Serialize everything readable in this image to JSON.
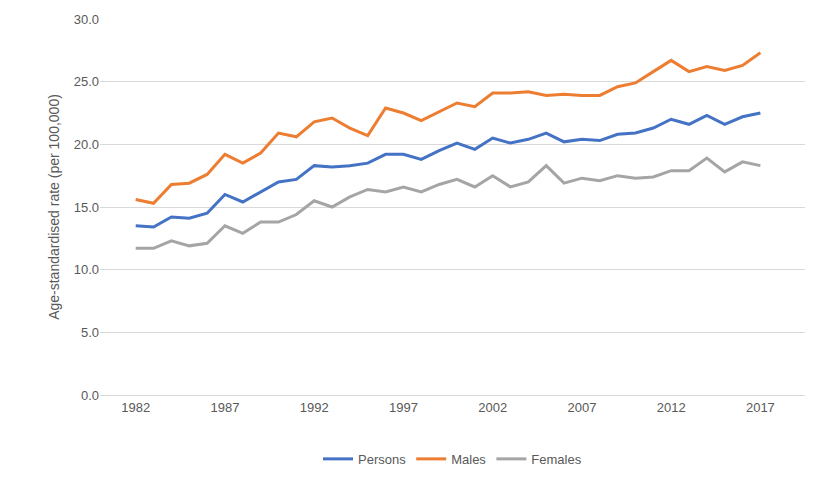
{
  "chart_data": {
    "type": "line",
    "y_label": "Age-standardised rate (per 100,000)",
    "x": [
      1982,
      1983,
      1984,
      1985,
      1986,
      1987,
      1988,
      1989,
      1990,
      1991,
      1992,
      1993,
      1994,
      1995,
      1996,
      1997,
      1998,
      1999,
      2000,
      2001,
      2002,
      2003,
      2004,
      2005,
      2006,
      2007,
      2008,
      2009,
      2010,
      2011,
      2012,
      2013,
      2014,
      2015,
      2016,
      2017
    ],
    "series": [
      {
        "name": "Persons",
        "color": "#4472c4",
        "values": [
          13.5,
          13.4,
          14.2,
          14.1,
          14.5,
          16.0,
          15.4,
          16.2,
          17.0,
          17.2,
          18.3,
          18.2,
          18.3,
          18.5,
          19.2,
          19.2,
          18.8,
          19.5,
          20.1,
          19.6,
          20.5,
          20.1,
          20.4,
          20.9,
          20.2,
          20.4,
          20.3,
          20.8,
          20.9,
          21.3,
          22.0,
          21.6,
          22.3,
          21.6,
          22.2,
          22.5
        ]
      },
      {
        "name": "Males",
        "color": "#ed7d31",
        "values": [
          15.6,
          15.3,
          16.8,
          16.9,
          17.6,
          19.2,
          18.5,
          19.3,
          20.9,
          20.6,
          21.8,
          22.1,
          21.3,
          20.7,
          22.9,
          22.5,
          21.9,
          22.6,
          23.3,
          23.0,
          24.1,
          24.1,
          24.2,
          23.9,
          24.0,
          23.9,
          23.9,
          24.6,
          24.9,
          25.8,
          26.7,
          25.8,
          26.2,
          25.9,
          26.3,
          27.3
        ]
      },
      {
        "name": "Females",
        "color": "#a5a5a5",
        "values": [
          11.7,
          11.7,
          12.3,
          11.9,
          12.1,
          13.5,
          12.9,
          13.8,
          13.8,
          14.4,
          15.5,
          15.0,
          15.8,
          16.4,
          16.2,
          16.6,
          16.2,
          16.8,
          17.2,
          16.6,
          17.5,
          16.6,
          17.0,
          18.3,
          16.9,
          17.3,
          17.1,
          17.5,
          17.3,
          17.4,
          17.9,
          17.9,
          18.9,
          17.8,
          18.6,
          18.3
        ]
      }
    ],
    "xlim": [
      1980,
      2019.5
    ],
    "xticks": [
      1982,
      1987,
      1992,
      1997,
      2002,
      2007,
      2012,
      2017
    ],
    "ylim": [
      0,
      30
    ],
    "yticks": [
      {
        "value": 0,
        "label": "0.0"
      },
      {
        "value": 5,
        "label": "5.0"
      },
      {
        "value": 10,
        "label": "10.0"
      },
      {
        "value": 15,
        "label": "15.0"
      },
      {
        "value": 20,
        "label": "20.0"
      },
      {
        "value": 25,
        "label": "25.0"
      },
      {
        "value": 30,
        "label": "30.0"
      }
    ],
    "grid": true,
    "legend": "bottom"
  }
}
